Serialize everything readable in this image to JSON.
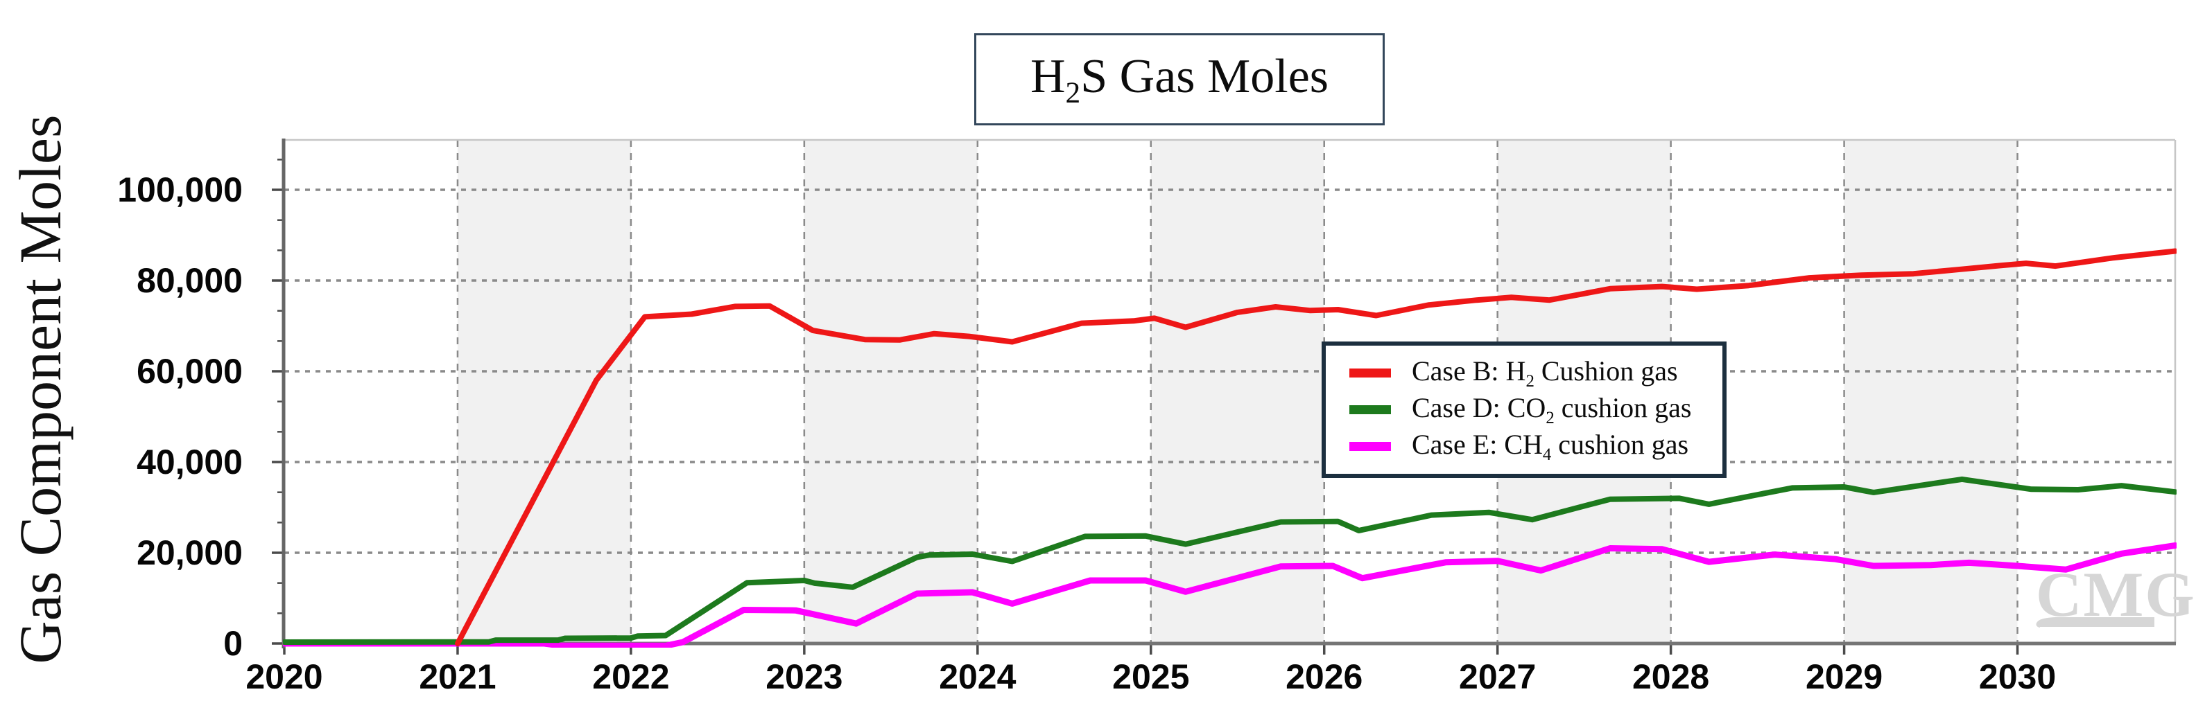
{
  "chart_data": {
    "type": "line",
    "title": {
      "pre": "H",
      "sub": "2",
      "post": "S Gas Moles"
    },
    "ylabel": "Gas Component Moles",
    "xlabel": "",
    "xlim": [
      2020,
      2030.91
    ],
    "ylim": [
      0,
      111000
    ],
    "x_tick_labels": [
      "2020",
      "2021",
      "2022",
      "2023",
      "2024",
      "2025",
      "2026",
      "2027",
      "2028",
      "2029",
      "2030"
    ],
    "x_tick_values": [
      2020,
      2021,
      2022,
      2023,
      2024,
      2025,
      2026,
      2027,
      2028,
      2029,
      2030
    ],
    "y_tick_labels": [
      "100,000",
      "80,000",
      "60,000",
      "40,000",
      "20,000",
      "0"
    ],
    "y_tick_values": [
      100000,
      80000,
      60000,
      40000,
      20000,
      0
    ],
    "y_minor_tick_step": 6666.7,
    "grid": "on",
    "shaded_year_bands": [
      [
        2021,
        2022
      ],
      [
        2023,
        2024
      ],
      [
        2025,
        2026
      ],
      [
        2027,
        2028
      ],
      [
        2029,
        2030
      ]
    ],
    "legend_position": "center-right",
    "watermark": "CMG",
    "colors": {
      "band": "#f1f1f1",
      "grid": "#8a8a8a",
      "axis": "#757575",
      "plot_border": "#c6c6c6",
      "tick": "#4a4a4a",
      "title_border": "#33475b",
      "legend_border": "#1c2f3f",
      "watermark": "#d6d6d6"
    },
    "series": [
      {
        "name": "Case B: H2 Cushion gas",
        "label": {
          "pre": "Case B: H",
          "sub": "2",
          "post": " Cushion gas"
        },
        "color": "#ee1717",
        "line_width": 8,
        "points": [
          [
            2021,
            0
          ],
          [
            2021.4,
            29000
          ],
          [
            2021.8,
            58000
          ],
          [
            2022.08,
            72000
          ],
          [
            2022.35,
            72600
          ],
          [
            2022.6,
            74300
          ],
          [
            2022.8,
            74400
          ],
          [
            2023.05,
            69000
          ],
          [
            2023.35,
            67000
          ],
          [
            2023.55,
            66900
          ],
          [
            2023.75,
            68300
          ],
          [
            2023.95,
            67700
          ],
          [
            2024.2,
            66500
          ],
          [
            2024.6,
            70600
          ],
          [
            2024.9,
            71100
          ],
          [
            2025.02,
            71700
          ],
          [
            2025.2,
            69700
          ],
          [
            2025.5,
            73000
          ],
          [
            2025.72,
            74200
          ],
          [
            2025.92,
            73400
          ],
          [
            2026.08,
            73600
          ],
          [
            2026.3,
            72300
          ],
          [
            2026.6,
            74600
          ],
          [
            2026.88,
            75700
          ],
          [
            2027.08,
            76300
          ],
          [
            2027.3,
            75700
          ],
          [
            2027.65,
            78200
          ],
          [
            2027.95,
            78700
          ],
          [
            2028.15,
            78100
          ],
          [
            2028.45,
            78900
          ],
          [
            2028.8,
            80600
          ],
          [
            2029.1,
            81200
          ],
          [
            2029.4,
            81500
          ],
          [
            2029.65,
            82400
          ],
          [
            2029.9,
            83300
          ],
          [
            2030.05,
            83800
          ],
          [
            2030.22,
            83200
          ],
          [
            2030.55,
            85000
          ],
          [
            2030.91,
            86500
          ]
        ]
      },
      {
        "name": "Case D: CO2 cushion gas",
        "label": {
          "pre": "Case D: CO",
          "sub": "2",
          "post": " cushion gas"
        },
        "color": "#1d7a1d",
        "line_width": 8,
        "points": [
          [
            2020,
            300
          ],
          [
            2021.18,
            350
          ],
          [
            2021.22,
            750
          ],
          [
            2021.58,
            750
          ],
          [
            2021.62,
            1150
          ],
          [
            2022.0,
            1200
          ],
          [
            2022.04,
            1650
          ],
          [
            2022.2,
            1750
          ],
          [
            2022.67,
            13400
          ],
          [
            2023.0,
            13900
          ],
          [
            2023.06,
            13300
          ],
          [
            2023.28,
            12400
          ],
          [
            2023.65,
            19000
          ],
          [
            2023.72,
            19500
          ],
          [
            2023.97,
            19700
          ],
          [
            2024.2,
            18100
          ],
          [
            2024.62,
            23600
          ],
          [
            2024.97,
            23700
          ],
          [
            2025.2,
            21900
          ],
          [
            2025.75,
            26800
          ],
          [
            2026.08,
            26900
          ],
          [
            2026.2,
            24900
          ],
          [
            2026.62,
            28300
          ],
          [
            2026.95,
            28900
          ],
          [
            2027.2,
            27300
          ],
          [
            2027.65,
            31800
          ],
          [
            2028.05,
            32000
          ],
          [
            2028.22,
            30700
          ],
          [
            2028.7,
            34300
          ],
          [
            2029.0,
            34500
          ],
          [
            2029.17,
            33300
          ],
          [
            2029.68,
            36200
          ],
          [
            2030.08,
            34000
          ],
          [
            2030.35,
            33900
          ],
          [
            2030.6,
            34800
          ],
          [
            2030.91,
            33400
          ]
        ]
      },
      {
        "name": "Case E: CH4 cushion gas",
        "label": {
          "pre": "Case E: CH",
          "sub": "4",
          "post": " cushion gas"
        },
        "color": "#ff00ff",
        "line_width": 9,
        "points": [
          [
            2020,
            0
          ],
          [
            2021.5,
            0
          ],
          [
            2021.6,
            -500
          ],
          [
            2022.2,
            -500
          ],
          [
            2022.3,
            300
          ],
          [
            2022.65,
            7400
          ],
          [
            2022.95,
            7300
          ],
          [
            2023.3,
            4400
          ],
          [
            2023.65,
            11000
          ],
          [
            2023.97,
            11300
          ],
          [
            2024.2,
            8800
          ],
          [
            2024.65,
            13900
          ],
          [
            2024.97,
            13900
          ],
          [
            2025.2,
            11400
          ],
          [
            2025.75,
            17000
          ],
          [
            2026.05,
            17100
          ],
          [
            2026.22,
            14400
          ],
          [
            2026.7,
            17900
          ],
          [
            2027.0,
            18200
          ],
          [
            2027.25,
            16100
          ],
          [
            2027.65,
            21000
          ],
          [
            2027.95,
            20800
          ],
          [
            2028.22,
            18000
          ],
          [
            2028.6,
            19600
          ],
          [
            2028.95,
            18600
          ],
          [
            2029.17,
            17100
          ],
          [
            2029.5,
            17300
          ],
          [
            2029.72,
            17800
          ],
          [
            2030.0,
            17100
          ],
          [
            2030.28,
            16300
          ],
          [
            2030.6,
            19800
          ],
          [
            2030.91,
            21600
          ]
        ]
      }
    ]
  }
}
